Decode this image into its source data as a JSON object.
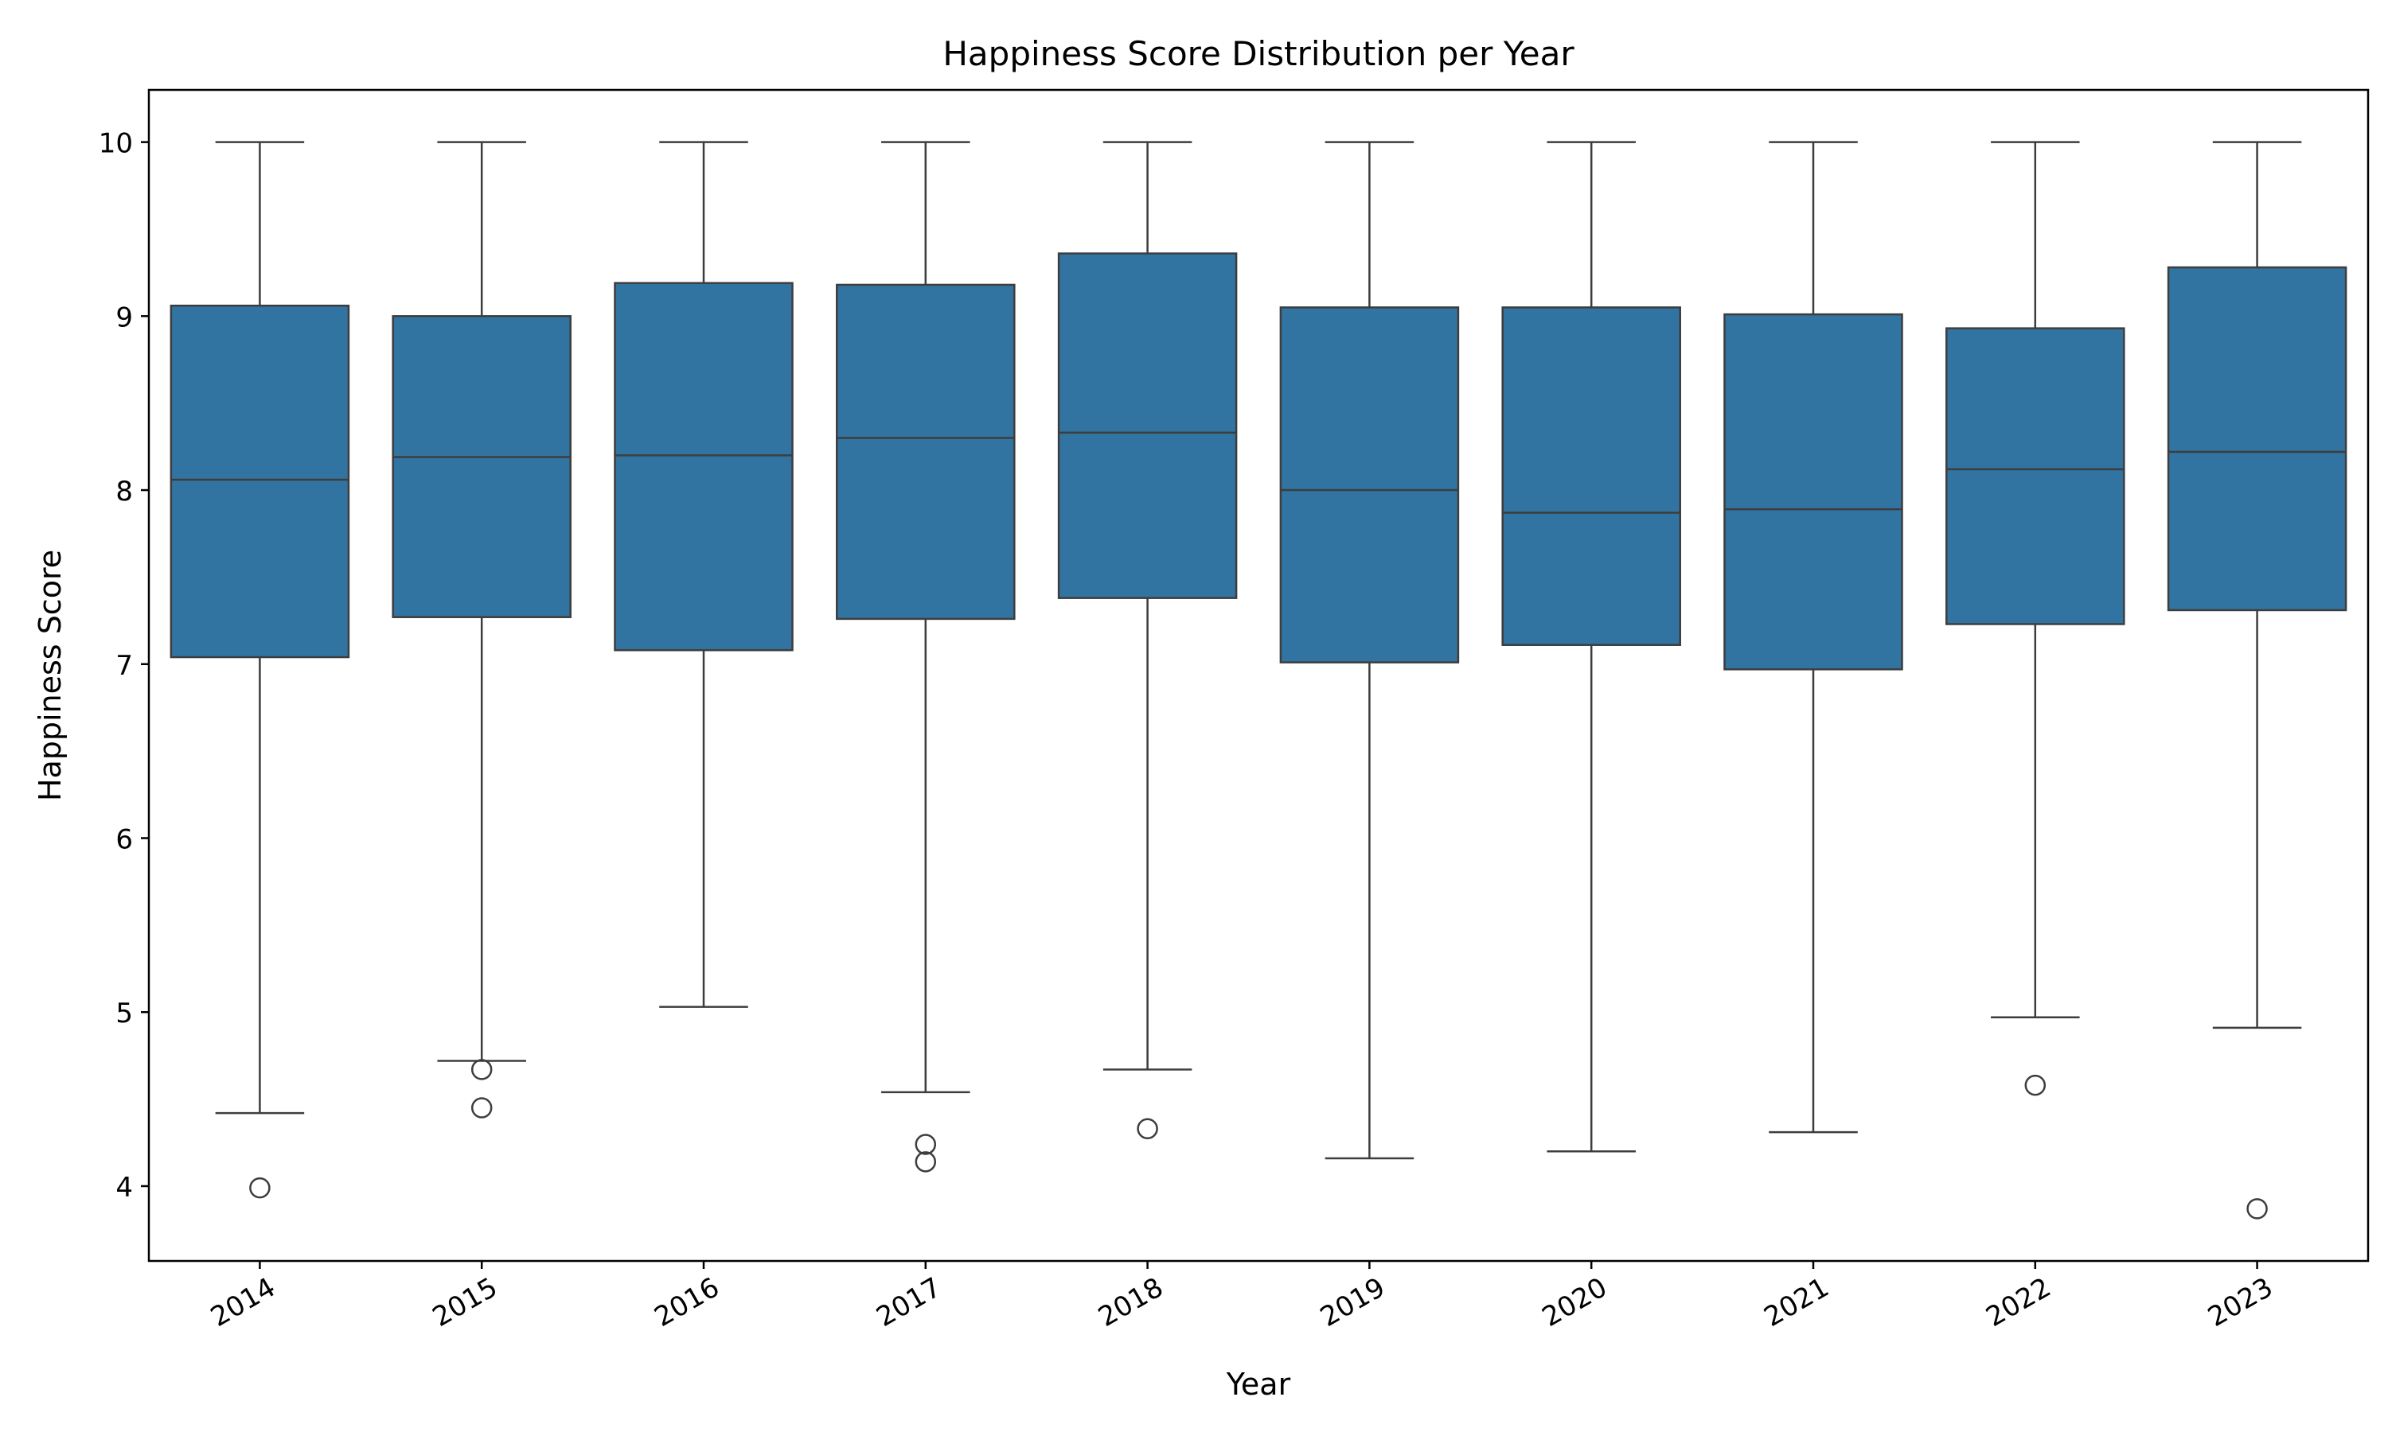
{
  "chart_data": {
    "type": "box",
    "title": "Happiness Score Distribution per Year",
    "xlabel": "Year",
    "ylabel": "Happiness Score",
    "ylim": [
      3.57,
      10.3
    ],
    "yticks": [
      "4",
      "5",
      "6",
      "7",
      "8",
      "9",
      "10"
    ],
    "grid": false,
    "legend": "none",
    "box_color": "#3274a1",
    "line_color": "#3d3d3d",
    "categories": [
      "2014",
      "2015",
      "2016",
      "2017",
      "2018",
      "2019",
      "2020",
      "2021",
      "2022",
      "2023"
    ],
    "boxes": [
      {
        "year": "2014",
        "whisker_low": 4.42,
        "q1": 7.04,
        "median": 8.06,
        "q3": 9.06,
        "whisker_high": 10.0,
        "outliers": [
          3.99
        ]
      },
      {
        "year": "2015",
        "whisker_low": 4.72,
        "q1": 7.27,
        "median": 8.19,
        "q3": 9.0,
        "whisker_high": 10.0,
        "outliers": [
          4.67,
          4.45
        ]
      },
      {
        "year": "2016",
        "whisker_low": 5.03,
        "q1": 7.08,
        "median": 8.2,
        "q3": 9.19,
        "whisker_high": 10.0,
        "outliers": []
      },
      {
        "year": "2017",
        "whisker_low": 4.54,
        "q1": 7.26,
        "median": 8.3,
        "q3": 9.18,
        "whisker_high": 10.0,
        "outliers": [
          4.24,
          4.14
        ]
      },
      {
        "year": "2018",
        "whisker_low": 4.67,
        "q1": 7.38,
        "median": 8.33,
        "q3": 9.36,
        "whisker_high": 10.0,
        "outliers": [
          4.33
        ]
      },
      {
        "year": "2019",
        "whisker_low": 4.16,
        "q1": 7.01,
        "median": 8.0,
        "q3": 9.05,
        "whisker_high": 10.0,
        "outliers": []
      },
      {
        "year": "2020",
        "whisker_low": 4.2,
        "q1": 7.11,
        "median": 7.87,
        "q3": 9.05,
        "whisker_high": 10.0,
        "outliers": []
      },
      {
        "year": "2021",
        "whisker_low": 4.31,
        "q1": 6.97,
        "median": 7.89,
        "q3": 9.01,
        "whisker_high": 10.0,
        "outliers": []
      },
      {
        "year": "2022",
        "whisker_low": 4.97,
        "q1": 7.23,
        "median": 8.12,
        "q3": 8.93,
        "whisker_high": 10.0,
        "outliers": [
          4.58
        ]
      },
      {
        "year": "2023",
        "whisker_low": 4.91,
        "q1": 7.31,
        "median": 8.22,
        "q3": 9.28,
        "whisker_high": 10.0,
        "outliers": [
          3.87
        ]
      }
    ]
  }
}
